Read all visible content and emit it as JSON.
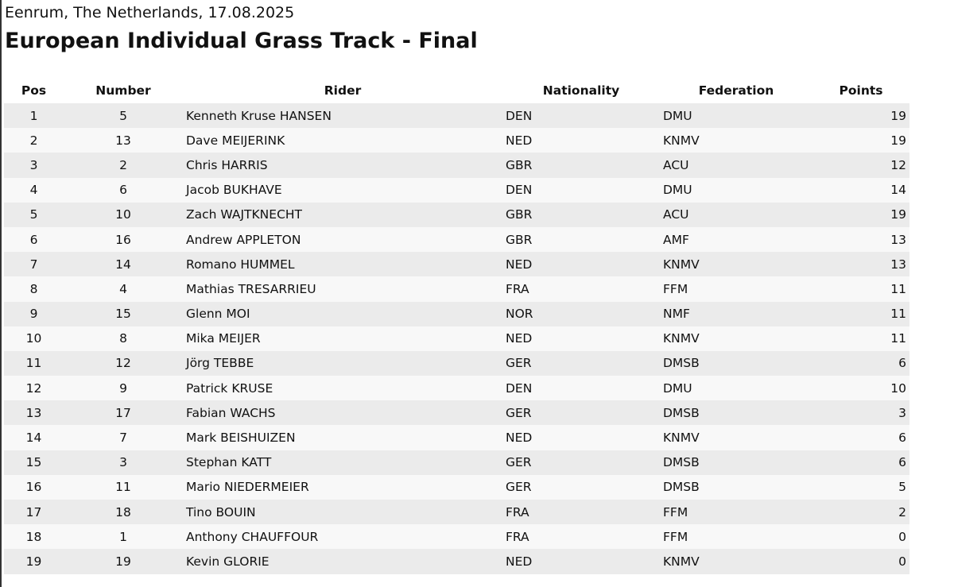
{
  "header": {
    "location_date": "Eenrum, The Netherlands, 17.08.2025",
    "title": "European Individual Grass Track - Final"
  },
  "table": {
    "columns": [
      "Pos",
      "Number",
      "Rider",
      "Nationality",
      "Federation",
      "Points"
    ],
    "rows": [
      [
        1,
        5,
        "Kenneth Kruse HANSEN",
        "DEN",
        "DMU",
        19
      ],
      [
        2,
        13,
        "Dave MEIJERINK",
        "NED",
        "KNMV",
        19
      ],
      [
        3,
        2,
        "Chris HARRIS",
        "GBR",
        "ACU",
        12
      ],
      [
        4,
        6,
        "Jacob BUKHAVE",
        "DEN",
        "DMU",
        14
      ],
      [
        5,
        10,
        "Zach WAJTKNECHT",
        "GBR",
        "ACU",
        19
      ],
      [
        6,
        16,
        "Andrew APPLETON",
        "GBR",
        "AMF",
        13
      ],
      [
        7,
        14,
        "Romano HUMMEL",
        "NED",
        "KNMV",
        13
      ],
      [
        8,
        4,
        "Mathias TRESARRIEU",
        "FRA",
        "FFM",
        11
      ],
      [
        9,
        15,
        "Glenn MOI",
        "NOR",
        "NMF",
        11
      ],
      [
        10,
        8,
        "Mika MEIJER",
        "NED",
        "KNMV",
        11
      ],
      [
        11,
        12,
        "Jörg TEBBE",
        "GER",
        "DMSB",
        6
      ],
      [
        12,
        9,
        "Patrick KRUSE",
        "DEN",
        "DMU",
        10
      ],
      [
        13,
        17,
        "Fabian WACHS",
        "GER",
        "DMSB",
        3
      ],
      [
        14,
        7,
        "Mark BEISHUIZEN",
        "NED",
        "KNMV",
        6
      ],
      [
        15,
        3,
        "Stephan KATT",
        "GER",
        "DMSB",
        6
      ],
      [
        16,
        11,
        "Mario NIEDERMEIER",
        "GER",
        "DMSB",
        5
      ],
      [
        17,
        18,
        "Tino BOUIN",
        "FRA",
        "FFM",
        2
      ],
      [
        18,
        1,
        "Anthony CHAUFFOUR",
        "FRA",
        "FFM",
        0
      ],
      [
        19,
        19,
        "Kevin GLORIE",
        "NED",
        "KNMV",
        0
      ]
    ]
  }
}
